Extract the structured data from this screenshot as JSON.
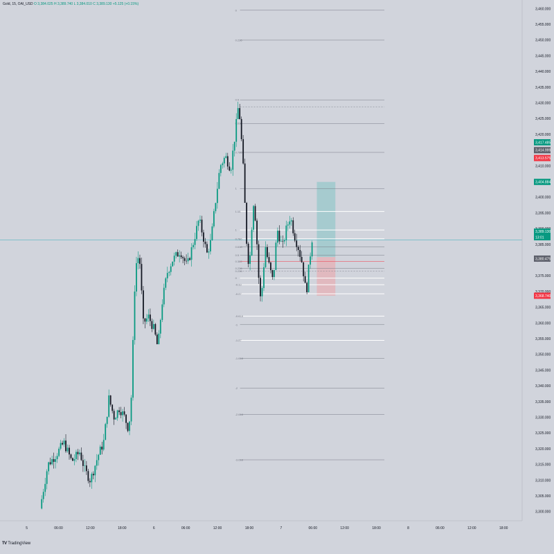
{
  "header": {
    "symbol": "Gold, 15, OAI_USD",
    "open": "O 3,384.025",
    "high": "H 3,389.740",
    "low": "L 3,384.010",
    "close": "C 3,389.130",
    "change": "+5.125 (+0.15%)"
  },
  "footer": {
    "logo_icon": "tradingview-logo-icon",
    "brand": "TradingView"
  },
  "colors": {
    "background": "#d1d4dc",
    "up": "#089981",
    "down": "#131722",
    "grid_white": "#ffffff",
    "grid_gray": "#787b86",
    "hline": "#4fb3bf",
    "target_zone": "#9fc9cc",
    "stop_zone": "#e4b4ba",
    "badge_green": "#089981",
    "badge_red": "#f23645",
    "badge_dark": "#5d606b"
  },
  "chart_data": {
    "type": "candlestick",
    "ylim": [
      3298,
      3461
    ],
    "y_ticks": [
      "3,460.000",
      "3,455.000",
      "3,450.000",
      "3,445.000",
      "3,440.000",
      "3,435.000",
      "3,430.000",
      "3,425.000",
      "3,420.000",
      "3,415.000",
      "3,410.000",
      "3,405.000",
      "3,400.000",
      "3,395.000",
      "3,390.000",
      "3,385.000",
      "3,380.000",
      "3,375.000",
      "3,370.000",
      "3,365.000",
      "3,360.000",
      "3,355.000",
      "3,350.000",
      "3,345.000",
      "3,340.000",
      "3,335.000",
      "3,330.000",
      "3,325.000",
      "3,320.000",
      "3,315.000",
      "3,310.000",
      "3,305.000",
      "3,300.000"
    ],
    "x_ticks": [
      {
        "label": "5",
        "t": 0.08
      },
      {
        "label": "06:00",
        "t": 0.2
      },
      {
        "label": "12:00",
        "t": 0.32
      },
      {
        "label": "18:00",
        "t": 0.44
      },
      {
        "label": "6",
        "t": 0.56
      },
      {
        "label": "06:00",
        "t": 0.68
      },
      {
        "label": "12:00",
        "t": 0.8
      },
      {
        "label": "18:00",
        "t": 0.92
      },
      {
        "label": "7",
        "t": 1.04
      },
      {
        "label": "06:00",
        "t": 1.16
      },
      {
        "label": "12:00",
        "t": 1.28
      },
      {
        "label": "18:00",
        "t": 1.4
      },
      {
        "label": "8",
        "t": 1.52
      },
      {
        "label": "06:00",
        "t": 1.64
      },
      {
        "label": "12:00",
        "t": 1.76
      },
      {
        "label": "18:00",
        "t": 1.88
      }
    ],
    "anchors": [
      [
        0.13,
        3301
      ],
      [
        0.16,
        3315
      ],
      [
        0.19,
        3318
      ],
      [
        0.22,
        3322
      ],
      [
        0.25,
        3316
      ],
      [
        0.28,
        3319
      ],
      [
        0.3,
        3313
      ],
      [
        0.32,
        3310
      ],
      [
        0.35,
        3318
      ],
      [
        0.37,
        3322
      ],
      [
        0.39,
        3336
      ],
      [
        0.41,
        3330
      ],
      [
        0.43,
        3333
      ],
      [
        0.45,
        3330
      ],
      [
        0.465,
        3326
      ],
      [
        0.475,
        3337
      ],
      [
        0.49,
        3378
      ],
      [
        0.505,
        3382
      ],
      [
        0.52,
        3360
      ],
      [
        0.54,
        3362
      ],
      [
        0.56,
        3358
      ],
      [
        0.575,
        3352
      ],
      [
        0.59,
        3366
      ],
      [
        0.61,
        3376
      ],
      [
        0.63,
        3380
      ],
      [
        0.66,
        3383
      ],
      [
        0.685,
        3378
      ],
      [
        0.71,
        3386
      ],
      [
        0.73,
        3393
      ],
      [
        0.745,
        3388
      ],
      [
        0.76,
        3382
      ],
      [
        0.775,
        3386
      ],
      [
        0.79,
        3397
      ],
      [
        0.81,
        3410
      ],
      [
        0.83,
        3413
      ],
      [
        0.85,
        3409
      ],
      [
        0.865,
        3419
      ],
      [
        0.88,
        3430
      ],
      [
        0.895,
        3413
      ],
      [
        0.91,
        3386
      ],
      [
        0.92,
        3377
      ],
      [
        0.935,
        3399
      ],
      [
        0.945,
        3392
      ],
      [
        0.96,
        3367
      ],
      [
        0.97,
        3372
      ],
      [
        0.98,
        3385
      ],
      [
        0.99,
        3380
      ],
      [
        1.01,
        3373
      ],
      [
        1.025,
        3390
      ],
      [
        1.045,
        3384
      ],
      [
        1.06,
        3390
      ],
      [
        1.075,
        3394
      ],
      [
        1.09,
        3388
      ],
      [
        1.105,
        3384
      ],
      [
        1.12,
        3379
      ],
      [
        1.135,
        3369
      ],
      [
        1.145,
        3378
      ],
      [
        1.16,
        3389
      ]
    ],
    "fib_levels": [
      {
        "label": "0",
        "price": 3459.5,
        "style": "gray",
        "dashed": false
      },
      {
        "label": "0.236",
        "price": 3450,
        "style": "gray",
        "dashed": false
      },
      {
        "label": "0.5",
        "price": 3431,
        "style": "gray",
        "dashed": false
      },
      {
        "label": "",
        "price": 3428.8,
        "style": "gray",
        "dashed": true
      },
      {
        "label": "0.618",
        "price": 3423.5,
        "style": "gray",
        "dashed": false
      },
      {
        "label": "0.786",
        "price": 3414.3,
        "style": "gray",
        "dashed": false
      },
      {
        "label": "1",
        "price": 3402.8,
        "style": "gray",
        "dashed": false
      },
      {
        "label": "1.13",
        "price": 3395.5,
        "style": "white",
        "dashed": false
      },
      {
        "label": "1",
        "price": 3389.6,
        "style": "white",
        "dashed": false
      },
      {
        "label": "0.786",
        "price": 3386.8,
        "style": "white",
        "dashed": false
      },
      {
        "label": "0.618",
        "price": 3384.2,
        "style": "gray",
        "dashed": false
      },
      {
        "label": "0.5",
        "price": 3381.6,
        "style": "gray",
        "dashed": false
      },
      {
        "label": "0.382",
        "price": 3379.6,
        "style": "red",
        "dashed": false
      },
      {
        "label": "0.236",
        "price": 3377.4,
        "style": "gray",
        "dashed": false
      },
      {
        "label": "0.236",
        "price": 3376.5,
        "style": "gray",
        "dashed": true
      },
      {
        "label": "0",
        "price": 3374.3,
        "style": "white",
        "dashed": false
      },
      {
        "label": "-0.13",
        "price": 3372.2,
        "style": "white",
        "dashed": false
      },
      {
        "label": "-0.27",
        "price": 3369.3,
        "style": "white",
        "dashed": false
      },
      {
        "label": "-0.618",
        "price": 3362.2,
        "style": "white",
        "dashed": false
      },
      {
        "label": "-1",
        "price": 3359.5,
        "style": "gray",
        "dashed": false
      },
      {
        "label": "-1.27",
        "price": 3354.5,
        "style": "white",
        "dashed": false
      },
      {
        "label": "-1.618",
        "price": 3348.8,
        "style": "gray",
        "dashed": false
      },
      {
        "label": "-2",
        "price": 3339.3,
        "style": "gray",
        "dashed": false
      },
      {
        "label": "-2.618",
        "price": 3330.9,
        "style": "gray",
        "dashed": false
      },
      {
        "label": "-3.618",
        "price": 3316.5,
        "style": "gray",
        "dashed": false
      }
    ],
    "horizontal_line": 3386.4,
    "position": {
      "target": 3404.9,
      "entry": 3381.0,
      "stop": 3368.7
    },
    "price_badges": [
      {
        "text": "3,417.485",
        "price": 3417.5,
        "color": "green"
      },
      {
        "text": "3,414.999",
        "price": 3415.0,
        "color": "dark"
      },
      {
        "text": "3,413.575",
        "price": 3412.5,
        "color": "red"
      },
      {
        "text": "3,404.884",
        "price": 3404.9,
        "color": "green"
      },
      {
        "text": "3,389.130",
        "price": 3389.1,
        "color": "green"
      },
      {
        "text": "13:01",
        "price": 3387.3,
        "color": "green"
      },
      {
        "text": "3,380.475",
        "price": 3380.5,
        "color": "dark"
      },
      {
        "text": "3,368.740",
        "price": 3368.7,
        "color": "red"
      }
    ]
  }
}
